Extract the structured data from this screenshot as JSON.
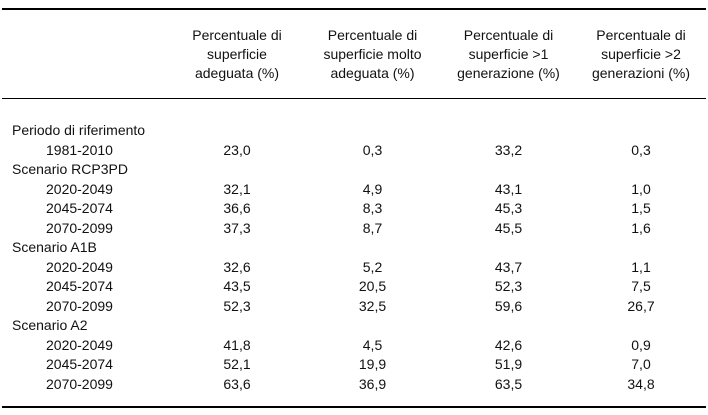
{
  "colors": {
    "background": "#ffffff",
    "text": "#111111",
    "rule": "#000000"
  },
  "table": {
    "columns": [
      "",
      "Percentuale di\nsuperficie\nadeguata (%)",
      "Percentuale di\nsuperficie molto\nadeguata (%)",
      "Percentuale di\nsuperficie >1\ngenerazione (%)",
      "Percentuale di\nsuperficie >2\ngenerazioni (%)"
    ],
    "groups": [
      {
        "label": "Periodo di riferimento",
        "rows": [
          {
            "label": "1981-2010",
            "values": [
              "23,0",
              "0,3",
              "33,2",
              "0,3"
            ]
          }
        ]
      },
      {
        "label": "Scenario RCP3PD",
        "rows": [
          {
            "label": "2020-2049",
            "values": [
              "32,1",
              "4,9",
              "43,1",
              "1,0"
            ]
          },
          {
            "label": "2045-2074",
            "values": [
              "36,6",
              "8,3",
              "45,3",
              "1,5"
            ]
          },
          {
            "label": "2070-2099",
            "values": [
              "37,3",
              "8,7",
              "45,5",
              "1,6"
            ]
          }
        ]
      },
      {
        "label": "Scenario A1B",
        "rows": [
          {
            "label": "2020-2049",
            "values": [
              "32,6",
              "5,2",
              "43,7",
              "1,1"
            ]
          },
          {
            "label": "2045-2074",
            "values": [
              "43,5",
              "20,5",
              "52,3",
              "7,5"
            ]
          },
          {
            "label": "2070-2099",
            "values": [
              "52,3",
              "32,5",
              "59,6",
              "26,7"
            ]
          }
        ]
      },
      {
        "label": "Scenario A2",
        "rows": [
          {
            "label": "2020-2049",
            "values": [
              "41,8",
              "4,5",
              "42,6",
              "0,9"
            ]
          },
          {
            "label": "2045-2074",
            "values": [
              "52,1",
              "19,9",
              "51,9",
              "7,0"
            ]
          },
          {
            "label": "2070-2099",
            "values": [
              "63,6",
              "36,9",
              "63,5",
              "34,8"
            ]
          }
        ]
      }
    ]
  }
}
